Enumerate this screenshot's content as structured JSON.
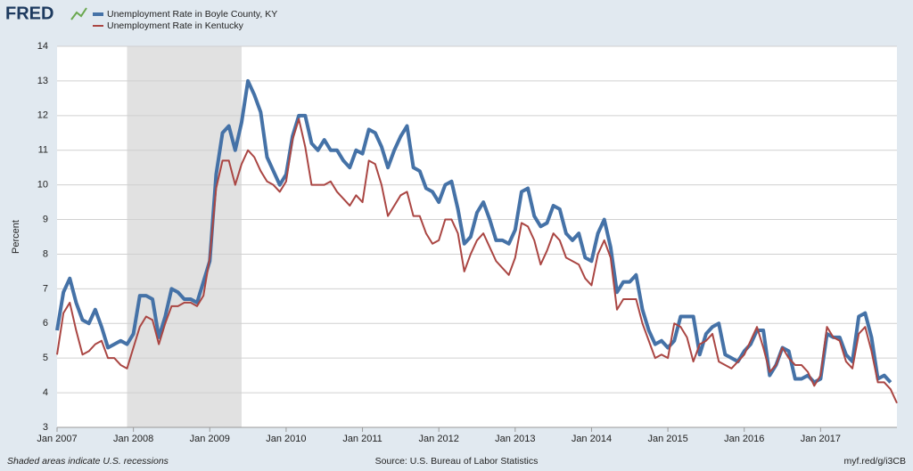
{
  "chart_data": {
    "type": "line",
    "brand": "FRED",
    "y_label": "Percent",
    "note": "Shaded areas indicate U.S. recessions",
    "source": "Source: U.S. Bureau of Labor Statistics",
    "link": "myf.red/g/i3CB",
    "grid": true,
    "legend": "top-left",
    "recessions": [
      {
        "start": "2007-12",
        "end": "2009-06"
      }
    ],
    "ylim": [
      3,
      14
    ],
    "yticks": [
      3,
      4,
      5,
      6,
      7,
      8,
      9,
      10,
      11,
      12,
      13,
      14
    ],
    "xlim": [
      "2007-01",
      "2018-01"
    ],
    "xticks": [
      {
        "value": "2007-01",
        "label": "Jan 2007"
      },
      {
        "value": "2008-01",
        "label": "Jan 2008"
      },
      {
        "value": "2009-01",
        "label": "Jan 2009"
      },
      {
        "value": "2010-01",
        "label": "Jan 2010"
      },
      {
        "value": "2011-01",
        "label": "Jan 2011"
      },
      {
        "value": "2012-01",
        "label": "Jan 2012"
      },
      {
        "value": "2013-01",
        "label": "Jan 2013"
      },
      {
        "value": "2014-01",
        "label": "Jan 2014"
      },
      {
        "value": "2015-01",
        "label": "Jan 2015"
      },
      {
        "value": "2016-01",
        "label": "Jan 2016"
      },
      {
        "value": "2017-01",
        "label": "Jan 2017"
      }
    ],
    "x": [
      "2007-01",
      "2007-02",
      "2007-03",
      "2007-04",
      "2007-05",
      "2007-06",
      "2007-07",
      "2007-08",
      "2007-09",
      "2007-10",
      "2007-11",
      "2007-12",
      "2008-01",
      "2008-02",
      "2008-03",
      "2008-04",
      "2008-05",
      "2008-06",
      "2008-07",
      "2008-08",
      "2008-09",
      "2008-10",
      "2008-11",
      "2008-12",
      "2009-01",
      "2009-02",
      "2009-03",
      "2009-04",
      "2009-05",
      "2009-06",
      "2009-07",
      "2009-08",
      "2009-09",
      "2009-10",
      "2009-11",
      "2009-12",
      "2010-01",
      "2010-02",
      "2010-03",
      "2010-04",
      "2010-05",
      "2010-06",
      "2010-07",
      "2010-08",
      "2010-09",
      "2010-10",
      "2010-11",
      "2010-12",
      "2011-01",
      "2011-02",
      "2011-03",
      "2011-04",
      "2011-05",
      "2011-06",
      "2011-07",
      "2011-08",
      "2011-09",
      "2011-10",
      "2011-11",
      "2011-12",
      "2012-01",
      "2012-02",
      "2012-03",
      "2012-04",
      "2012-05",
      "2012-06",
      "2012-07",
      "2012-08",
      "2012-09",
      "2012-10",
      "2012-11",
      "2012-12",
      "2013-01",
      "2013-02",
      "2013-03",
      "2013-04",
      "2013-05",
      "2013-06",
      "2013-07",
      "2013-08",
      "2013-09",
      "2013-10",
      "2013-11",
      "2013-12",
      "2014-01",
      "2014-02",
      "2014-03",
      "2014-04",
      "2014-05",
      "2014-06",
      "2014-07",
      "2014-08",
      "2014-09",
      "2014-10",
      "2014-11",
      "2014-12",
      "2015-01",
      "2015-02",
      "2015-03",
      "2015-04",
      "2015-05",
      "2015-06",
      "2015-07",
      "2015-08",
      "2015-09",
      "2015-10",
      "2015-11",
      "2015-12",
      "2016-01",
      "2016-02",
      "2016-03",
      "2016-04",
      "2016-05",
      "2016-06",
      "2016-07",
      "2016-08",
      "2016-09",
      "2016-10",
      "2016-11",
      "2016-12",
      "2017-01",
      "2017-02",
      "2017-03",
      "2017-04",
      "2017-05",
      "2017-06",
      "2017-07",
      "2017-08",
      "2017-09",
      "2017-10",
      "2017-11",
      "2017-12",
      "2018-01"
    ],
    "series": [
      {
        "name": "Unemployment Rate in Boyle County, KY",
        "color": "#4572a7",
        "width": 4,
        "values": [
          5.8,
          6.9,
          7.3,
          6.6,
          6.1,
          6.0,
          6.4,
          5.9,
          5.3,
          5.4,
          5.5,
          5.4,
          5.7,
          6.8,
          6.8,
          6.7,
          5.6,
          6.2,
          7.0,
          6.9,
          6.7,
          6.7,
          6.6,
          7.2,
          7.8,
          10.3,
          11.5,
          11.7,
          11.0,
          11.8,
          13.0,
          12.6,
          12.1,
          10.8,
          10.4,
          10.0,
          10.3,
          11.4,
          12.0,
          12.0,
          11.2,
          11.0,
          11.3,
          11.0,
          11.0,
          10.7,
          10.5,
          11.0,
          10.9,
          11.6,
          11.5,
          11.1,
          10.5,
          11.0,
          11.4,
          11.7,
          10.5,
          10.4,
          9.9,
          9.8,
          9.5,
          10.0,
          10.1,
          9.3,
          8.3,
          8.5,
          9.2,
          9.5,
          9.0,
          8.4,
          8.4,
          8.3,
          8.7,
          9.8,
          9.9,
          9.1,
          8.8,
          8.9,
          9.4,
          9.3,
          8.6,
          8.4,
          8.6,
          7.9,
          7.8,
          8.6,
          9.0,
          8.2,
          6.9,
          7.2,
          7.2,
          7.4,
          6.4,
          5.8,
          5.4,
          5.5,
          5.3,
          5.5,
          6.2,
          6.2,
          6.2,
          5.1,
          5.7,
          5.9,
          6.0,
          5.1,
          5.0,
          4.9,
          5.2,
          5.4,
          5.8,
          5.8,
          4.5,
          4.8,
          5.3,
          5.2,
          4.4,
          4.4,
          4.5,
          4.3,
          4.4,
          5.7,
          5.6,
          5.6,
          5.1,
          4.9,
          6.2,
          6.3,
          5.6,
          4.4,
          4.5,
          4.3,
          null
        ]
      },
      {
        "name": "Unemployment Rate in Kentucky",
        "color": "#aa4643",
        "width": 2,
        "values": [
          5.1,
          6.3,
          6.6,
          5.8,
          5.1,
          5.2,
          5.4,
          5.5,
          5.0,
          5.0,
          4.8,
          4.7,
          5.3,
          5.9,
          6.2,
          6.1,
          5.4,
          6.0,
          6.5,
          6.5,
          6.6,
          6.6,
          6.5,
          6.8,
          7.9,
          9.9,
          10.7,
          10.7,
          10.0,
          10.6,
          11.0,
          10.8,
          10.4,
          10.1,
          10.0,
          9.8,
          10.1,
          11.3,
          11.9,
          11.1,
          10.0,
          10.0,
          10.0,
          10.1,
          9.8,
          9.6,
          9.4,
          9.7,
          9.5,
          10.7,
          10.6,
          10.0,
          9.1,
          9.4,
          9.7,
          9.8,
          9.1,
          9.1,
          8.6,
          8.3,
          8.4,
          9.0,
          9.0,
          8.6,
          7.5,
          8.0,
          8.4,
          8.6,
          8.2,
          7.8,
          7.6,
          7.4,
          7.9,
          8.9,
          8.8,
          8.4,
          7.7,
          8.1,
          8.6,
          8.4,
          7.9,
          7.8,
          7.7,
          7.3,
          7.1,
          8.0,
          8.4,
          7.9,
          6.4,
          6.7,
          6.7,
          6.7,
          6.0,
          5.5,
          5.0,
          5.1,
          5.0,
          6.0,
          5.9,
          5.6,
          4.9,
          5.4,
          5.5,
          5.7,
          4.9,
          4.8,
          4.7,
          4.9,
          5.1,
          5.5,
          5.9,
          5.3,
          4.6,
          4.8,
          5.3,
          5.0,
          4.8,
          4.8,
          4.6,
          4.2,
          4.5,
          5.9,
          5.6,
          5.5,
          4.9,
          4.7,
          5.7,
          5.9,
          5.2,
          4.3,
          4.3,
          4.1,
          3.7
        ]
      }
    ]
  }
}
